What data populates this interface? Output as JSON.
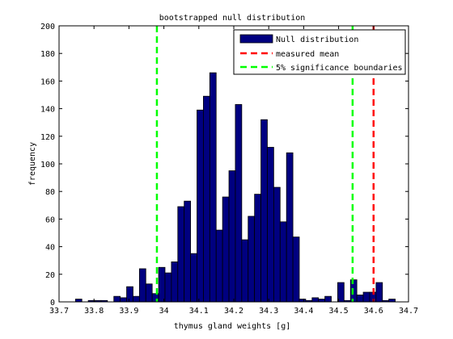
{
  "chart_data": {
    "type": "bar",
    "title": "bootstrapped null distribution",
    "xlabel": "thymus gland weights [g]",
    "ylabel": "frequency",
    "xlim": [
      33.7,
      34.7
    ],
    "ylim": [
      0,
      200
    ],
    "x_ticks": [
      "33.7",
      "33.8",
      "33.9",
      "34",
      "34.1",
      "34.2",
      "34.3",
      "34.4",
      "34.5",
      "34.6",
      "34.7"
    ],
    "y_ticks": [
      "0",
      "20",
      "40",
      "60",
      "80",
      "100",
      "120",
      "140",
      "160",
      "180",
      "200"
    ],
    "grid": false,
    "legend_position": "top-right",
    "series": [
      {
        "name": "Null distribution",
        "color": "#000080",
        "bin_edges": [
          33.747,
          33.7653,
          33.7836,
          33.8019,
          33.8202,
          33.8385,
          33.8568,
          33.8751,
          33.8934,
          33.9117,
          33.93,
          33.9483,
          33.9666,
          33.9849,
          34.0032,
          34.0215,
          34.0398,
          34.0581,
          34.0764,
          34.0947,
          34.113,
          34.1313,
          34.1496,
          34.1679,
          34.1862,
          34.2045,
          34.2228,
          34.2411,
          34.2594,
          34.2777,
          34.296,
          34.3143,
          34.3326,
          34.3509,
          34.3692,
          34.3875,
          34.4058,
          34.4241,
          34.4424,
          34.4607,
          34.479,
          34.4973,
          34.5156,
          34.5339,
          34.5522,
          34.5705,
          34.5888,
          34.6071,
          34.6254,
          34.6437,
          34.662,
          34.6803,
          34.7
        ],
        "values": [
          2,
          0,
          1,
          1,
          1,
          0,
          4,
          3,
          11,
          4,
          24,
          13,
          6,
          25,
          21,
          29,
          69,
          73,
          35,
          139,
          149,
          166,
          52,
          76,
          95,
          143,
          45,
          62,
          78,
          132,
          112,
          83,
          58,
          108,
          47,
          2,
          1,
          3,
          2,
          4,
          0,
          14,
          1,
          16,
          5,
          7,
          7,
          14,
          1,
          2,
          0,
          0
        ]
      },
      {
        "name": "measured mean",
        "type": "vline",
        "style": "dashed",
        "color": "#ff0000",
        "x": 34.6
      },
      {
        "name": "5% significance boundaries",
        "type": "vline",
        "style": "dashed",
        "color": "#00ff00",
        "x": [
          33.98,
          34.54
        ]
      }
    ]
  }
}
